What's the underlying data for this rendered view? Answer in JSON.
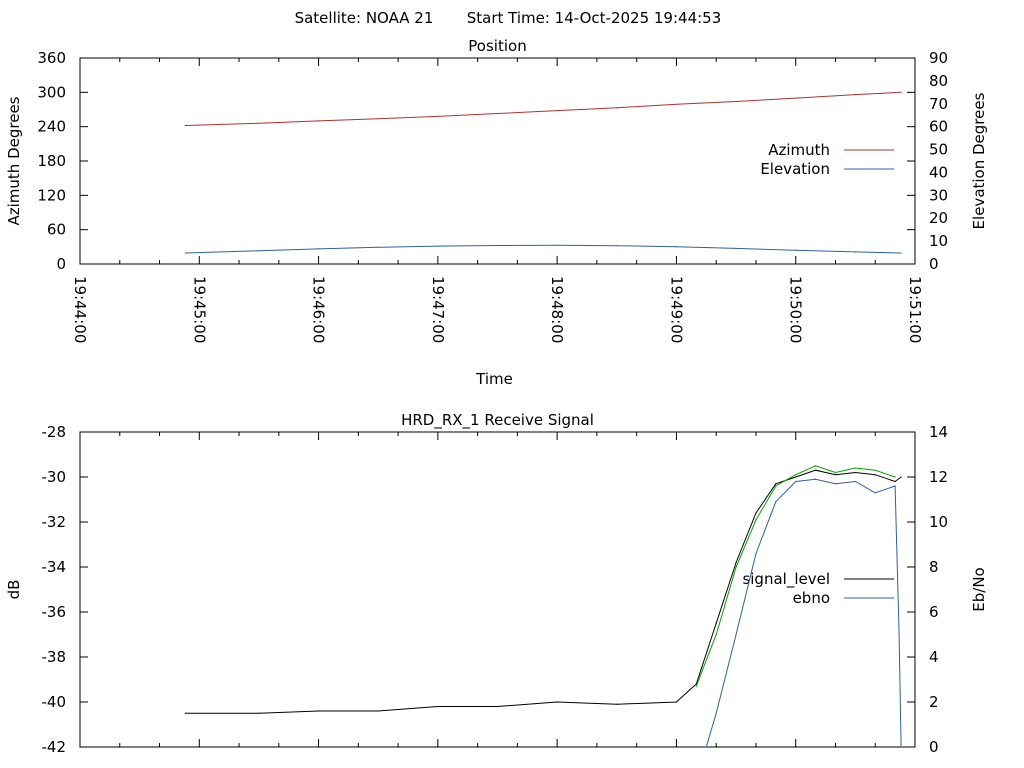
{
  "header": {
    "satellite": "Satellite: NOAA 21",
    "start_time": "Start Time: 14-Oct-2025 19:44:53"
  },
  "chart_data": [
    {
      "type": "line",
      "title": "Position",
      "xlabel": "Time",
      "ylabel": "Azimuth Degrees",
      "y2label": "Elevation Degrees",
      "xlim": [
        "19:44:00",
        "19:51:00"
      ],
      "x_ticks": [
        "19:44:00",
        "19:45:00",
        "19:46:00",
        "19:47:00",
        "19:48:00",
        "19:49:00",
        "19:50:00",
        "19:51:00"
      ],
      "ylim": [
        0,
        360
      ],
      "y_ticks": [
        "0",
        "60",
        "120",
        "180",
        "240",
        "300",
        "360"
      ],
      "y2lim": [
        0,
        90
      ],
      "y2_ticks": [
        "0",
        "10",
        "20",
        "30",
        "40",
        "50",
        "60",
        "70",
        "80",
        "90"
      ],
      "legend_position": "right",
      "series": [
        {
          "name": "Azimuth",
          "axis": "y",
          "color": "#b03030",
          "x": [
            "19:44:53",
            "19:45:30",
            "19:46:00",
            "19:46:30",
            "19:47:00",
            "19:47:30",
            "19:48:00",
            "19:48:30",
            "19:49:00",
            "19:49:30",
            "19:50:00",
            "19:50:30",
            "19:50:53"
          ],
          "values": [
            242,
            246,
            250,
            254,
            258,
            263,
            268,
            273,
            279,
            284,
            290,
            296,
            300
          ]
        },
        {
          "name": "Elevation",
          "axis": "y2",
          "color": "#3060a0",
          "x": [
            "19:44:53",
            "19:45:30",
            "19:46:00",
            "19:46:30",
            "19:47:00",
            "19:47:30",
            "19:48:00",
            "19:48:30",
            "19:49:00",
            "19:49:30",
            "19:50:00",
            "19:50:30",
            "19:50:53"
          ],
          "values": [
            4.8,
            5.8,
            6.6,
            7.3,
            7.8,
            8.1,
            8.2,
            8.0,
            7.5,
            6.8,
            6.0,
            5.3,
            4.8
          ]
        }
      ]
    },
    {
      "type": "line",
      "title": "HRD_RX_1 Receive Signal",
      "ylabel": "dB",
      "y2label": "Eb/No",
      "xlim": [
        "19:44:00",
        "19:51:00"
      ],
      "ylim": [
        -42,
        -28
      ],
      "y_ticks": [
        "-42",
        "-40",
        "-38",
        "-36",
        "-34",
        "-32",
        "-30",
        "-28"
      ],
      "y2lim": [
        0,
        14
      ],
      "y2_ticks": [
        "0",
        "2",
        "4",
        "6",
        "8",
        "10",
        "12",
        "14"
      ],
      "legend_position": "right",
      "series": [
        {
          "name": "signal_level",
          "axis": "y",
          "color": "#000000",
          "x": [
            "19:44:53",
            "19:45:30",
            "19:46:00",
            "19:46:30",
            "19:47:00",
            "19:47:30",
            "19:48:00",
            "19:48:30",
            "19:49:00",
            "19:49:10",
            "19:49:20",
            "19:49:30",
            "19:49:40",
            "19:49:50",
            "19:50:00",
            "19:50:10",
            "19:50:20",
            "19:50:30",
            "19:50:40",
            "19:50:50",
            "19:50:53"
          ],
          "values": [
            -40.5,
            -40.5,
            -40.4,
            -40.4,
            -40.2,
            -40.2,
            -40.0,
            -40.1,
            -40.0,
            -39.2,
            -36.5,
            -33.8,
            -31.6,
            -30.3,
            -30.0,
            -29.7,
            -29.9,
            -29.8,
            -29.9,
            -30.2,
            -30.0
          ]
        },
        {
          "name": "ebno",
          "axis": "y2",
          "color": "#3060a0",
          "x": [
            "19:49:15",
            "19:49:20",
            "19:49:30",
            "19:49:40",
            "19:49:50",
            "19:50:00",
            "19:50:10",
            "19:50:20",
            "19:50:30",
            "19:50:40",
            "19:50:50",
            "19:50:52",
            "19:50:53"
          ],
          "values": [
            0.0,
            1.5,
            5.0,
            8.6,
            10.9,
            11.8,
            11.9,
            11.7,
            11.8,
            11.3,
            11.6,
            5.0,
            0.0
          ]
        },
        {
          "name": "",
          "axis": "y",
          "color": "#00a000",
          "x": [
            "19:49:10",
            "19:49:20",
            "19:49:30",
            "19:49:40",
            "19:49:50",
            "19:50:00",
            "19:50:10",
            "19:50:20",
            "19:50:30",
            "19:50:40",
            "19:50:50"
          ],
          "values": [
            -39.3,
            -37.0,
            -34.0,
            -31.9,
            -30.4,
            -29.9,
            -29.5,
            -29.8,
            -29.6,
            -29.7,
            -30.0
          ]
        }
      ]
    }
  ]
}
